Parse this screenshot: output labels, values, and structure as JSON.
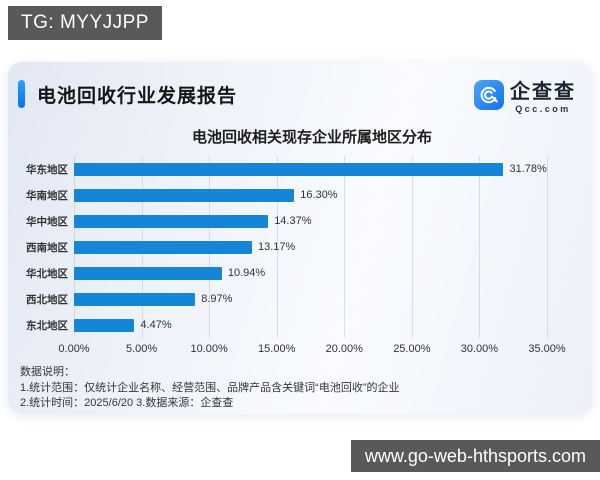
{
  "watermarks": {
    "top_left": "TG: MYYJJPP",
    "bottom_right": "www.go-web-hthsports.com"
  },
  "header": {
    "title": "电池回收行业发展报告",
    "accent_color": "#0b6eee",
    "brand_name": "企查查",
    "brand_domain": "Qcc.com",
    "brand_logo_color": "#2e8ff2"
  },
  "chart_data": {
    "type": "bar",
    "orientation": "horizontal",
    "title": "电池回收相关现存企业所属地区分布",
    "categories": [
      "华东地区",
      "华南地区",
      "华中地区",
      "西南地区",
      "华北地区",
      "西北地区",
      "东北地区"
    ],
    "values": [
      31.78,
      16.3,
      14.37,
      13.17,
      10.94,
      8.97,
      4.47
    ],
    "value_labels": [
      "31.78%",
      "16.30%",
      "14.37%",
      "13.17%",
      "10.94%",
      "8.97%",
      "4.47%"
    ],
    "x_ticks": [
      "0.00%",
      "5.00%",
      "10.00%",
      "15.00%",
      "20.00%",
      "25.00%",
      "30.00%",
      "35.00%"
    ],
    "xlim": [
      0,
      35
    ],
    "tick_step": 5,
    "bar_color": "#1585d8",
    "grid": true,
    "legend": false
  },
  "notes": {
    "heading": "数据说明：",
    "line1": "1.统计范围：仅统计企业名称、经营范围、品牌产品含关键词“电池回收”的企业",
    "line2": "2.统计时间：2025/6/20  3.数据来源：企查查"
  }
}
